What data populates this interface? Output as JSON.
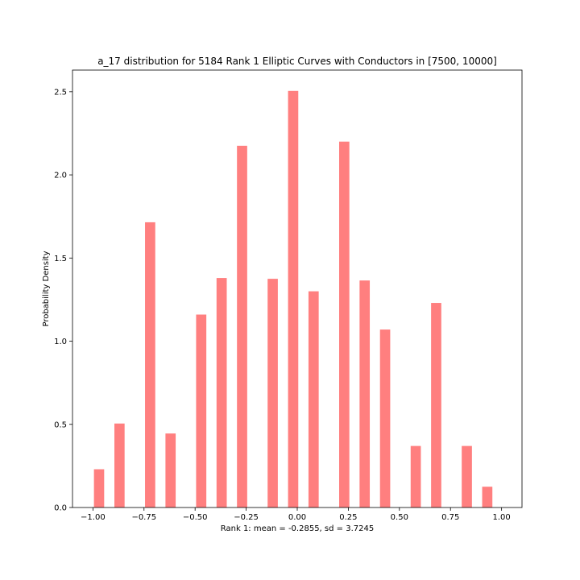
{
  "chart_data": {
    "type": "bar",
    "title": "a_17 distribution for 5184 Rank 1 Elliptic Curves with Conductors in [7500, 10000]",
    "xlabel": "Rank 1: mean = -0.2855, sd = 3.7245",
    "ylabel": "Probability Density",
    "xlim": [
      -1.1,
      1.1
    ],
    "ylim": [
      0,
      2.63
    ],
    "bar_width": 0.05,
    "bar_color": "#ff7f7f",
    "grid": false,
    "legend": "none",
    "x": [
      -0.97,
      -0.87,
      -0.72,
      -0.62,
      -0.47,
      -0.37,
      -0.27,
      -0.12,
      -0.02,
      0.08,
      0.23,
      0.33,
      0.43,
      0.58,
      0.68,
      0.83,
      0.93
    ],
    "values": [
      0.23,
      0.505,
      1.715,
      0.445,
      1.16,
      1.38,
      2.175,
      1.375,
      2.505,
      1.3,
      2.2,
      1.365,
      1.07,
      0.37,
      1.23,
      0.37,
      0.125
    ],
    "xticks": [
      -1.0,
      -0.75,
      -0.5,
      -0.25,
      0.0,
      0.25,
      0.5,
      0.75,
      1.0
    ],
    "xtick_labels": [
      "−1.00",
      "−0.75",
      "−0.50",
      "−0.25",
      "0.00",
      "0.25",
      "0.50",
      "0.75",
      "1.00"
    ],
    "yticks": [
      0.0,
      0.5,
      1.0,
      1.5,
      2.0,
      2.5
    ],
    "ytick_labels": [
      "0.0",
      "0.5",
      "1.0",
      "1.5",
      "2.0",
      "2.5"
    ]
  }
}
